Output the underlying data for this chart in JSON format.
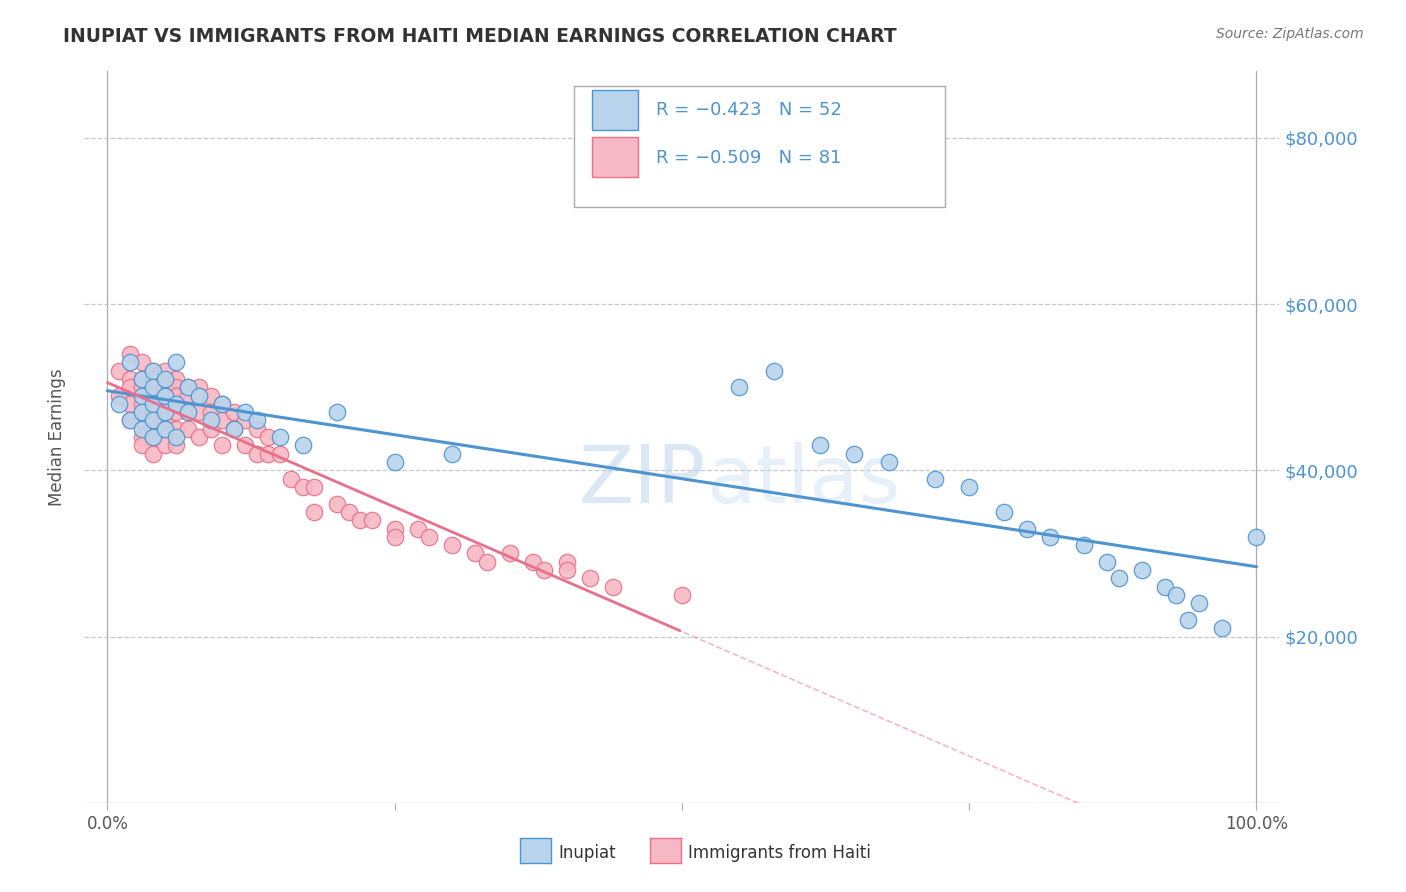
{
  "title": "INUPIAT VS IMMIGRANTS FROM HAITI MEDIAN EARNINGS CORRELATION CHART",
  "source": "Source: ZipAtlas.com",
  "ylabel": "Median Earnings",
  "xlim": [
    -0.02,
    1.02
  ],
  "ylim": [
    0,
    88000
  ],
  "yticks": [
    20000,
    40000,
    60000,
    80000
  ],
  "title_color": "#333333",
  "source_color": "#777777",
  "ylabel_color": "#555555",
  "background_color": "#ffffff",
  "grid_color": "#c8c8c8",
  "blue_color": "#4d94d0",
  "pink_color": "#e8708a",
  "blue_fill": "#b8d4ec",
  "pink_fill": "#f5b8c4",
  "legend_R1": "R = −0.423",
  "legend_N1": "N = 52",
  "legend_R2": "R = −0.509",
  "legend_N2": "N = 81",
  "legend_label1": "Inupiat",
  "legend_label2": "Immigrants from Haiti",
  "inupiat_x": [
    0.01,
    0.02,
    0.02,
    0.03,
    0.03,
    0.03,
    0.03,
    0.04,
    0.04,
    0.04,
    0.04,
    0.04,
    0.05,
    0.05,
    0.05,
    0.05,
    0.06,
    0.06,
    0.06,
    0.07,
    0.07,
    0.08,
    0.09,
    0.1,
    0.11,
    0.12,
    0.13,
    0.15,
    0.17,
    0.2,
    0.25,
    0.3,
    0.55,
    0.58,
    0.62,
    0.65,
    0.68,
    0.72,
    0.75,
    0.78,
    0.8,
    0.82,
    0.85,
    0.87,
    0.88,
    0.9,
    0.92,
    0.93,
    0.94,
    0.95,
    0.97,
    1.0
  ],
  "inupiat_y": [
    48000,
    53000,
    46000,
    51000,
    49000,
    47000,
    45000,
    52000,
    50000,
    48000,
    46000,
    44000,
    51000,
    49000,
    47000,
    45000,
    53000,
    48000,
    44000,
    50000,
    47000,
    49000,
    46000,
    48000,
    45000,
    47000,
    46000,
    44000,
    43000,
    47000,
    41000,
    42000,
    50000,
    52000,
    43000,
    42000,
    41000,
    39000,
    38000,
    35000,
    33000,
    32000,
    31000,
    29000,
    27000,
    28000,
    26000,
    25000,
    22000,
    24000,
    21000,
    32000
  ],
  "haiti_x": [
    0.01,
    0.01,
    0.02,
    0.02,
    0.02,
    0.02,
    0.02,
    0.03,
    0.03,
    0.03,
    0.03,
    0.03,
    0.03,
    0.03,
    0.04,
    0.04,
    0.04,
    0.04,
    0.04,
    0.04,
    0.04,
    0.04,
    0.05,
    0.05,
    0.05,
    0.05,
    0.05,
    0.05,
    0.05,
    0.06,
    0.06,
    0.06,
    0.06,
    0.06,
    0.06,
    0.07,
    0.07,
    0.07,
    0.07,
    0.08,
    0.08,
    0.08,
    0.08,
    0.09,
    0.09,
    0.09,
    0.1,
    0.1,
    0.1,
    0.11,
    0.11,
    0.12,
    0.12,
    0.13,
    0.13,
    0.14,
    0.14,
    0.15,
    0.16,
    0.17,
    0.18,
    0.18,
    0.2,
    0.21,
    0.22,
    0.23,
    0.25,
    0.25,
    0.27,
    0.28,
    0.3,
    0.32,
    0.33,
    0.35,
    0.37,
    0.38,
    0.4,
    0.4,
    0.42,
    0.44,
    0.5
  ],
  "haiti_y": [
    52000,
    49000,
    54000,
    51000,
    50000,
    48000,
    46000,
    53000,
    51000,
    50000,
    48000,
    46000,
    44000,
    43000,
    52000,
    51000,
    49000,
    48000,
    47000,
    46000,
    44000,
    42000,
    52000,
    50000,
    49000,
    47000,
    46000,
    45000,
    43000,
    51000,
    50000,
    49000,
    47000,
    45000,
    43000,
    50000,
    49000,
    47000,
    45000,
    50000,
    49000,
    47000,
    44000,
    49000,
    47000,
    45000,
    48000,
    46000,
    43000,
    47000,
    45000,
    46000,
    43000,
    45000,
    42000,
    44000,
    42000,
    42000,
    39000,
    38000,
    38000,
    35000,
    36000,
    35000,
    34000,
    34000,
    33000,
    32000,
    33000,
    32000,
    31000,
    30000,
    29000,
    30000,
    29000,
    28000,
    29000,
    28000,
    27000,
    26000,
    25000
  ]
}
